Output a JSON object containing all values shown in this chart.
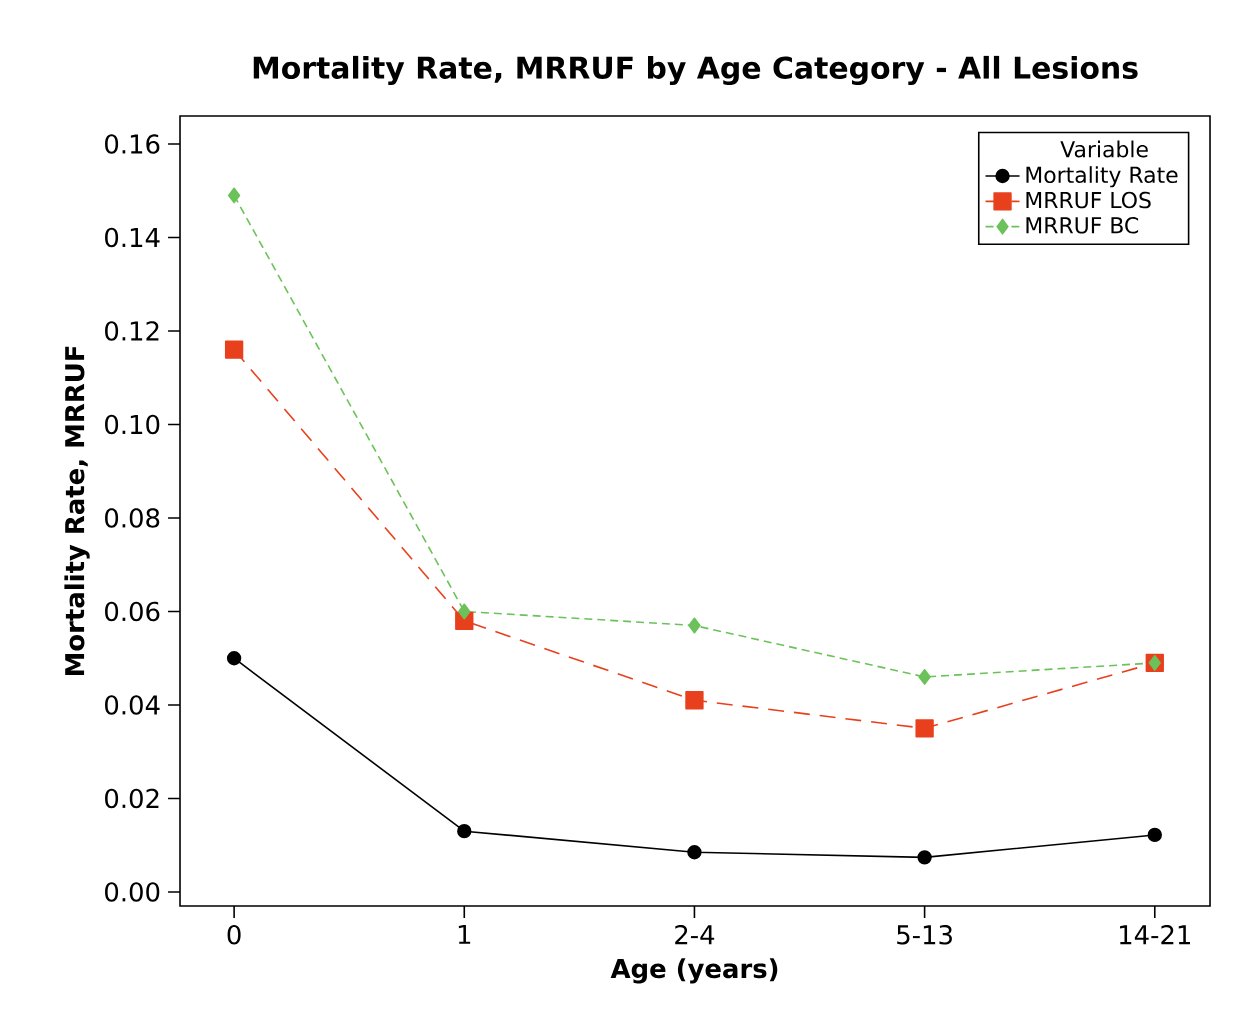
{
  "chart_data": {
    "type": "line",
    "title": "Mortality Rate, MRRUF by Age Category - All Lesions",
    "xlabel": "Age (years)",
    "ylabel": "Mortality Rate, MRRUF",
    "categories": [
      "0",
      "1",
      "2-4",
      "5-13",
      "14-21"
    ],
    "series": [
      {
        "name": "Mortality Rate",
        "color": "#000000",
        "marker": "circle",
        "line_style": "solid",
        "values": [
          0.05,
          0.013,
          0.0085,
          0.0074,
          0.0122
        ]
      },
      {
        "name": "MRRUF LOS",
        "color": "#e8401c",
        "marker": "square",
        "line_style": "dashed",
        "values": [
          0.116,
          0.058,
          0.041,
          0.035,
          0.049
        ]
      },
      {
        "name": "MRRUF BC",
        "color": "#6cc25a",
        "marker": "diamond",
        "line_style": "dotted",
        "values": [
          0.149,
          0.06,
          0.057,
          0.046,
          0.049
        ]
      }
    ],
    "ylim": [
      -0.003,
      0.166
    ],
    "yticks": [
      {
        "value": 0,
        "label": "0.00"
      },
      {
        "value": 0.02,
        "label": "0.02"
      },
      {
        "value": 0.04,
        "label": "0.04"
      },
      {
        "value": 0.06,
        "label": "0.06"
      },
      {
        "value": 0.08,
        "label": "0.08"
      },
      {
        "value": 0.1,
        "label": "0.10"
      },
      {
        "value": 0.12,
        "label": "0.12"
      },
      {
        "value": 0.14,
        "label": "0.14"
      },
      {
        "value": 0.16,
        "label": "0.16"
      }
    ],
    "legend": "top right",
    "legend_title": "Variable",
    "grid": false
  }
}
